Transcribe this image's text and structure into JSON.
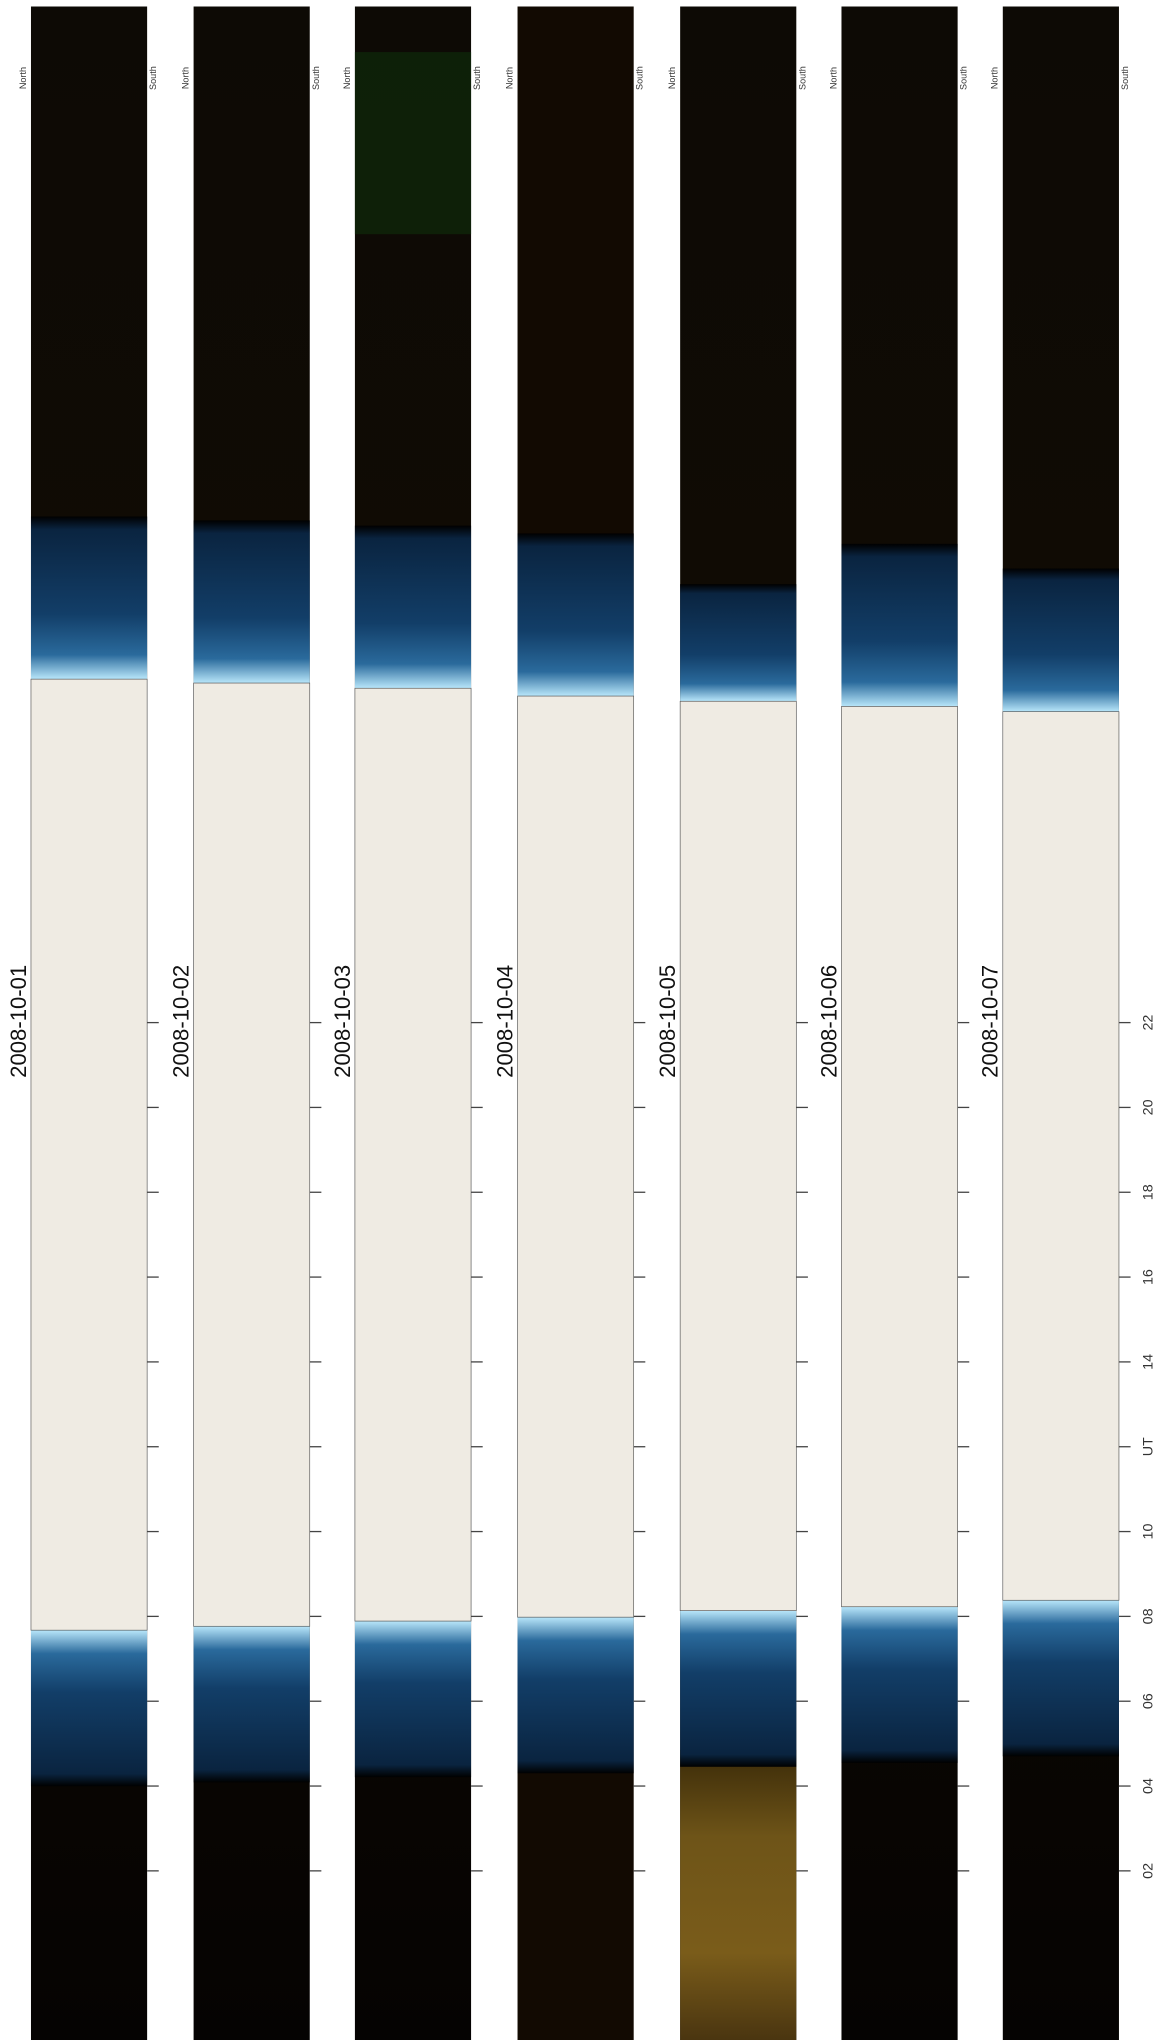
{
  "panels": [
    {
      "date": "2008-10-01",
      "north": "North",
      "south": "South"
    },
    {
      "date": "2008-10-02",
      "north": "North",
      "south": "South"
    },
    {
      "date": "2008-10-03",
      "north": "North",
      "south": "South"
    },
    {
      "date": "2008-10-04",
      "north": "North",
      "south": "South"
    },
    {
      "date": "2008-10-05",
      "north": "North",
      "south": "South"
    },
    {
      "date": "2008-10-06",
      "north": "North",
      "south": "South"
    },
    {
      "date": "2008-10-07",
      "north": "North",
      "south": "South"
    }
  ],
  "axis": {
    "ticks": [
      "02",
      "04",
      "06",
      "08",
      "10",
      "UT",
      "14",
      "16",
      "18",
      "20",
      "22"
    ]
  }
}
